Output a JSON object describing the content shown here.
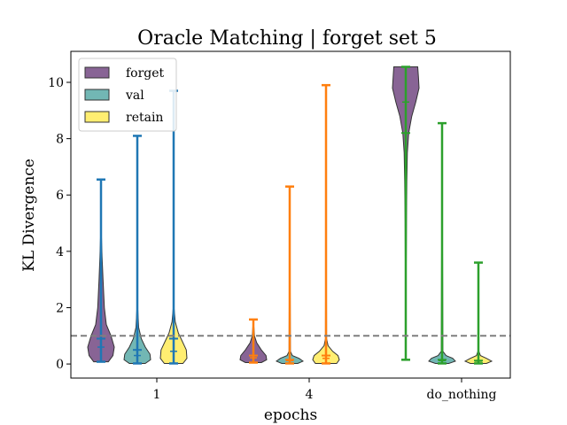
{
  "chart_data": {
    "type": "violin",
    "title": "Oracle Matching | forget set 5",
    "xlabel": "epochs",
    "ylabel": "KL Divergence",
    "groups": [
      "1",
      "4",
      "do_nothing"
    ],
    "ylim": [
      -0.5,
      11.1
    ],
    "yticks": [
      0,
      2,
      4,
      6,
      8,
      10
    ],
    "reference_line": 1.0,
    "legend": {
      "placement": "top-left",
      "entries": [
        {
          "label": "forget",
          "color": "#6a3d7a"
        },
        {
          "label": "val",
          "color": "#4fa5a1"
        },
        {
          "label": "retain",
          "color": "#ffea4d"
        }
      ]
    },
    "group_colors": {
      "1": "#1f77b4",
      "4": "#ff7f0e",
      "do_nothing": "#2ca02c"
    },
    "violins": [
      {
        "group": "1",
        "series": "forget",
        "min": 0.08,
        "max": 6.55,
        "mean": 0.9,
        "median": 0.6,
        "density": [
          [
            0.08,
            0.55
          ],
          [
            0.3,
            0.9
          ],
          [
            0.6,
            1.0
          ],
          [
            1.0,
            0.75
          ],
          [
            1.4,
            0.4
          ],
          [
            2.0,
            0.25
          ],
          [
            3.0,
            0.15
          ],
          [
            3.8,
            0.08
          ],
          [
            4.5,
            0.03
          ],
          [
            6.55,
            0.0
          ]
        ]
      },
      {
        "group": "1",
        "series": "val",
        "min": 0.02,
        "max": 8.1,
        "mean": 0.5,
        "median": 0.3,
        "density": [
          [
            0.02,
            0.6
          ],
          [
            0.15,
            1.0
          ],
          [
            0.35,
            0.95
          ],
          [
            0.6,
            0.6
          ],
          [
            0.9,
            0.3
          ],
          [
            1.3,
            0.1
          ],
          [
            2.0,
            0.03
          ],
          [
            8.1,
            0.0
          ]
        ]
      },
      {
        "group": "1",
        "series": "retain",
        "min": 0.02,
        "max": 9.7,
        "mean": 0.9,
        "median": 0.45,
        "density": [
          [
            0.02,
            0.7
          ],
          [
            0.2,
            1.0
          ],
          [
            0.5,
            0.95
          ],
          [
            0.8,
            0.65
          ],
          [
            1.1,
            0.35
          ],
          [
            1.5,
            0.12
          ],
          [
            2.0,
            0.03
          ],
          [
            9.7,
            0.0
          ]
        ]
      },
      {
        "group": "4",
        "series": "forget",
        "min": 0.05,
        "max": 1.58,
        "mean": 0.3,
        "median": 0.22,
        "density": [
          [
            0.05,
            0.6
          ],
          [
            0.15,
            1.0
          ],
          [
            0.3,
            0.95
          ],
          [
            0.5,
            0.6
          ],
          [
            0.75,
            0.25
          ],
          [
            1.0,
            0.08
          ],
          [
            1.58,
            0.0
          ]
        ]
      },
      {
        "group": "4",
        "series": "val",
        "min": 0.02,
        "max": 6.3,
        "mean": 0.15,
        "median": 0.12,
        "density": [
          [
            0.02,
            0.6
          ],
          [
            0.1,
            1.0
          ],
          [
            0.2,
            0.7
          ],
          [
            0.3,
            0.2
          ],
          [
            0.45,
            0.05
          ],
          [
            6.3,
            0.0
          ]
        ]
      },
      {
        "group": "4",
        "series": "retain",
        "min": 0.02,
        "max": 9.9,
        "mean": 0.3,
        "median": 0.2,
        "density": [
          [
            0.02,
            0.8
          ],
          [
            0.15,
            1.0
          ],
          [
            0.3,
            0.9
          ],
          [
            0.45,
            0.5
          ],
          [
            0.65,
            0.15
          ],
          [
            0.9,
            0.04
          ],
          [
            9.9,
            0.0
          ]
        ]
      },
      {
        "group": "do_nothing",
        "series": "forget",
        "min": 0.15,
        "max": 10.55,
        "mean": 8.2,
        "median": 9.3,
        "density": [
          [
            0.15,
            0.0
          ],
          [
            1.0,
            0.02
          ],
          [
            3.0,
            0.03
          ],
          [
            5.0,
            0.05
          ],
          [
            6.5,
            0.08
          ],
          [
            7.5,
            0.12
          ],
          [
            8.2,
            0.22
          ],
          [
            8.8,
            0.45
          ],
          [
            9.3,
            0.75
          ],
          [
            9.8,
            1.0
          ],
          [
            10.2,
            0.95
          ],
          [
            10.55,
            0.9
          ]
        ]
      },
      {
        "group": "do_nothing",
        "series": "val",
        "min": 0.02,
        "max": 8.55,
        "mean": 0.15,
        "median": 0.12,
        "density": [
          [
            0.02,
            0.5
          ],
          [
            0.1,
            1.0
          ],
          [
            0.2,
            0.8
          ],
          [
            0.3,
            0.3
          ],
          [
            0.45,
            0.06
          ],
          [
            8.55,
            0.0
          ]
        ]
      },
      {
        "group": "do_nothing",
        "series": "retain",
        "min": 0.02,
        "max": 3.6,
        "mean": 0.12,
        "median": 0.1,
        "density": [
          [
            0.02,
            0.6
          ],
          [
            0.1,
            1.0
          ],
          [
            0.2,
            0.6
          ],
          [
            0.3,
            0.15
          ],
          [
            0.45,
            0.03
          ],
          [
            3.6,
            0.0
          ]
        ]
      }
    ]
  }
}
